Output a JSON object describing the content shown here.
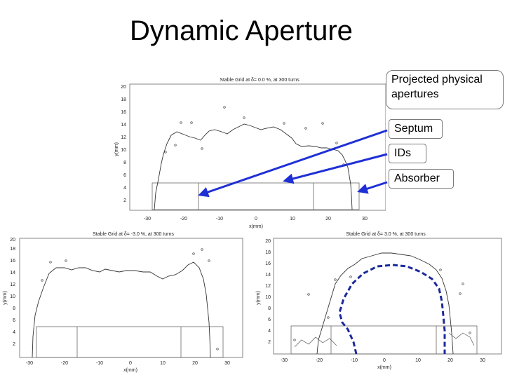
{
  "title": "Dynamic Aperture",
  "callouts": {
    "projected": "Projected physical apertures",
    "septum": "Septum",
    "ids": "IDs",
    "absorber": "Absorber"
  },
  "colors": {
    "arrow": "#1f2fd6",
    "dashed_boundary": "#1a2a9c",
    "frame": "#555555"
  },
  "plots": [
    {
      "title": "Stable Grid at δ= 0.0 %, at 300 turns",
      "xlabel": "x(mm)",
      "ylabel": "y(mm)",
      "xticks": [
        "-30",
        "-20",
        "-10",
        "0",
        "10",
        "20",
        "30"
      ],
      "yticks": [
        "2",
        "4",
        "6",
        "8",
        "10",
        "12",
        "14",
        "16",
        "18",
        "20"
      ]
    },
    {
      "title": "Stable Grid at δ= -3.0 %, at 300 turns",
      "xlabel": "x(mm)",
      "ylabel": "y(mm)",
      "xticks": [
        "-30",
        "-20",
        "-10",
        "0",
        "10",
        "20",
        "30"
      ],
      "yticks": [
        "2",
        "4",
        "6",
        "8",
        "10",
        "12",
        "14",
        "16",
        "18",
        "20"
      ]
    },
    {
      "title": "Stable Grid at δ= 3.0 %, at 300 turns",
      "xlabel": "x(mm)",
      "ylabel": "y(mm)",
      "xticks": [
        "-30",
        "-20",
        "-10",
        "0",
        "10",
        "20",
        "30"
      ],
      "yticks": [
        "2",
        "4",
        "6",
        "8",
        "10",
        "12",
        "14",
        "16",
        "18",
        "20"
      ]
    }
  ]
}
